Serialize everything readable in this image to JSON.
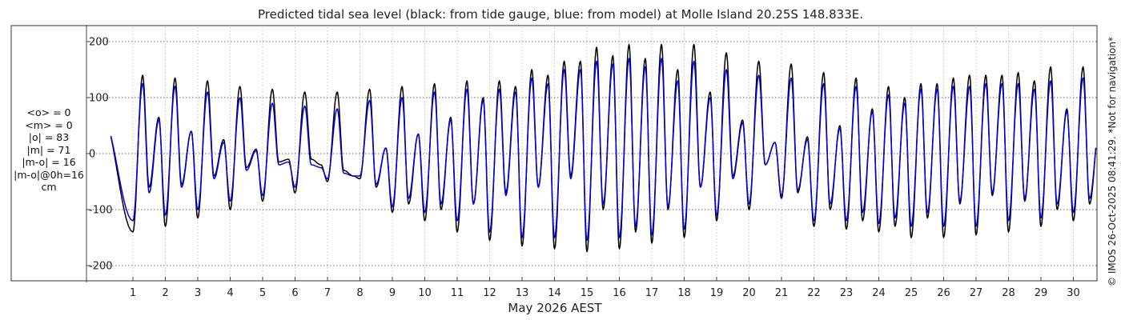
{
  "chart_data": {
    "type": "line",
    "title": "Predicted tidal sea level (black: from tide gauge, blue: from model) at Molle Island 20.25S 148.833E.",
    "xlabel": "May 2026 AEST",
    "ylabel": "",
    "x_ticks": [
      "1",
      "2",
      "3",
      "4",
      "5",
      "6",
      "7",
      "8",
      "9",
      "10",
      "11",
      "12",
      "13",
      "14",
      "15",
      "16",
      "17",
      "18",
      "19",
      "20",
      "21",
      "22",
      "23",
      "24",
      "25",
      "26",
      "27",
      "28",
      "29",
      "30"
    ],
    "xlim_days": [
      0.6,
      31.0
    ],
    "y_ticks": [
      "200",
      "100",
      "0",
      "-100",
      "-200"
    ],
    "ylim": [
      -230,
      230
    ],
    "grid": true,
    "unit": "cm",
    "series": [
      {
        "color": "#000000",
        "x_day": [
          1.0,
          1.3,
          1.5,
          1.8,
          2.0,
          2.3,
          2.5,
          2.8,
          3.0,
          3.3,
          3.5,
          3.8,
          4.0,
          4.3,
          4.5,
          4.8,
          5.0,
          5.3,
          5.5,
          5.8,
          6.0,
          6.3,
          6.5,
          6.8,
          7.0,
          7.3,
          7.5,
          7.8,
          8.0,
          8.3,
          8.5,
          8.8,
          9.0,
          9.3,
          9.5,
          9.8,
          10.0,
          10.3,
          10.5,
          10.8,
          11.0,
          11.3,
          11.5,
          11.8,
          12.0,
          12.3,
          12.5,
          12.8,
          13.0,
          13.3,
          13.5,
          13.8,
          14.0,
          14.3,
          14.5,
          14.8,
          15.0,
          15.3,
          15.5,
          15.8,
          16.0,
          16.3,
          16.5,
          16.8,
          17.0,
          17.3,
          17.5,
          17.8,
          18.0,
          18.3,
          18.5,
          18.8,
          19.0,
          19.3,
          19.5,
          19.8,
          20.0,
          20.3,
          20.5,
          20.8,
          21.0,
          21.3,
          21.5,
          21.8,
          22.0,
          22.3,
          22.5,
          22.8,
          23.0,
          23.3,
          23.5,
          23.8,
          24.0,
          24.3,
          24.5,
          24.8,
          25.0,
          25.3,
          25.5,
          25.8,
          26.0,
          26.3,
          26.5,
          26.8,
          27.0,
          27.3,
          27.5,
          27.8,
          28.0,
          28.3,
          28.5,
          28.8,
          29.0,
          29.3,
          29.5,
          29.8,
          30.0,
          30.3,
          30.5,
          30.8
        ],
        "y": [
          -140,
          140,
          -60,
          65,
          -130,
          135,
          -55,
          40,
          -115,
          130,
          -40,
          25,
          -100,
          120,
          -25,
          8,
          -85,
          115,
          -15,
          -10,
          -70,
          110,
          -10,
          -20,
          -50,
          110,
          -30,
          -40,
          -45,
          115,
          -60,
          10,
          -105,
          120,
          -90,
          35,
          -120,
          125,
          -100,
          65,
          -140,
          130,
          -90,
          100,
          -155,
          130,
          -70,
          120,
          -165,
          150,
          -60,
          140,
          -170,
          165,
          -40,
          165,
          -175,
          190,
          -100,
          175,
          -170,
          195,
          -140,
          170,
          -160,
          195,
          -100,
          150,
          -150,
          195,
          -60,
          110,
          -120,
          180,
          -40,
          60,
          -100,
          165,
          -20,
          20,
          -80,
          160,
          -70,
          30,
          -130,
          145,
          -100,
          50,
          -135,
          135,
          -120,
          80,
          -140,
          120,
          -130,
          100,
          -150,
          125,
          -115,
          125,
          -150,
          135,
          -90,
          140,
          -145,
          140,
          -75,
          140,
          -140,
          145,
          -85,
          130,
          -130,
          155,
          -100,
          80,
          -120,
          155,
          -90,
          50
        ]
      },
      {
        "color": "#0000e0",
        "x_day": [
          1.0,
          1.3,
          1.5,
          1.8,
          2.0,
          2.3,
          2.5,
          2.8,
          3.0,
          3.3,
          3.5,
          3.8,
          4.0,
          4.3,
          4.5,
          4.8,
          5.0,
          5.3,
          5.5,
          5.8,
          6.0,
          6.3,
          6.5,
          6.8,
          7.0,
          7.3,
          7.5,
          7.8,
          8.0,
          8.3,
          8.5,
          8.8,
          9.0,
          9.3,
          9.5,
          9.8,
          10.0,
          10.3,
          10.5,
          10.8,
          11.0,
          11.3,
          11.5,
          11.8,
          12.0,
          12.3,
          12.5,
          12.8,
          13.0,
          13.3,
          13.5,
          13.8,
          14.0,
          14.3,
          14.5,
          14.8,
          15.0,
          15.3,
          15.5,
          15.8,
          16.0,
          16.3,
          16.5,
          16.8,
          17.0,
          17.3,
          17.5,
          17.8,
          18.0,
          18.3,
          18.5,
          18.8,
          19.0,
          19.3,
          19.5,
          19.8,
          20.0,
          20.3,
          20.5,
          20.8,
          21.0,
          21.3,
          21.5,
          21.8,
          22.0,
          22.3,
          22.5,
          22.8,
          23.0,
          23.3,
          23.5,
          23.8,
          24.0,
          24.3,
          24.5,
          24.8,
          25.0,
          25.3,
          25.5,
          25.8,
          26.0,
          26.3,
          26.5,
          26.8,
          27.0,
          27.3,
          27.5,
          27.8,
          28.0,
          28.3,
          28.5,
          28.8,
          29.0,
          29.3,
          29.5,
          29.8,
          30.0,
          30.3,
          30.5,
          30.8
        ],
        "y": [
          -120,
          125,
          -70,
          60,
          -110,
          120,
          -60,
          40,
          -100,
          110,
          -45,
          20,
          -85,
          100,
          -30,
          5,
          -75,
          90,
          -20,
          -15,
          -60,
          85,
          -20,
          -25,
          -45,
          80,
          -35,
          -40,
          -40,
          95,
          -55,
          10,
          -95,
          100,
          -80,
          35,
          -105,
          110,
          -90,
          60,
          -120,
          115,
          -90,
          95,
          -140,
          115,
          -75,
          110,
          -150,
          135,
          -60,
          125,
          -150,
          150,
          -45,
          150,
          -155,
          165,
          -90,
          160,
          -150,
          170,
          -130,
          155,
          -145,
          170,
          -95,
          130,
          -135,
          165,
          -60,
          100,
          -110,
          150,
          -45,
          55,
          -90,
          140,
          -20,
          20,
          -75,
          135,
          -65,
          25,
          -120,
          125,
          -90,
          45,
          -120,
          120,
          -105,
          75,
          -125,
          105,
          -115,
          90,
          -130,
          115,
          -105,
          115,
          -130,
          120,
          -85,
          120,
          -130,
          125,
          -70,
          125,
          -120,
          125,
          -80,
          115,
          -115,
          130,
          -90,
          75,
          -105,
          135,
          -80,
          45
        ]
      }
    ]
  },
  "stats": {
    "mean_o": "<o> = 0",
    "mean_m": "<m> = 0",
    "abs_o": "|o| = 83",
    "abs_m": "|m| = 71",
    "abs_diff": "|m-o| = 16",
    "abs_diff_0h": "|m-o|@0h=16",
    "unit": "cm"
  },
  "credit": "© IMOS 26-Oct-2025 08:41:29. *Not for navigation*"
}
